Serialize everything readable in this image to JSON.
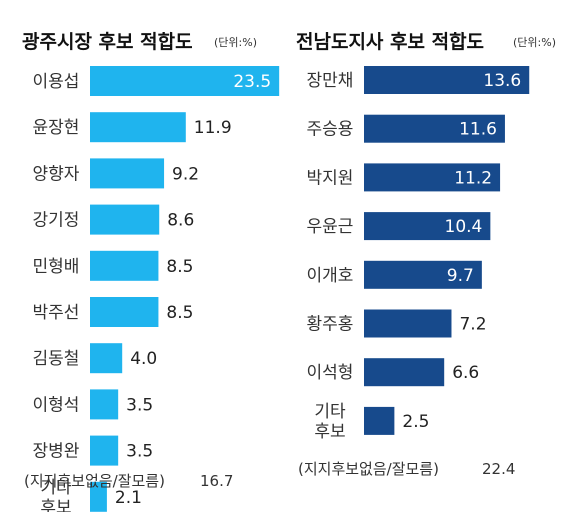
{
  "chart_data": [
    {
      "type": "bar",
      "orientation": "horizontal",
      "title": "광주시장 후보 적합도",
      "unit": "(단위:%)",
      "color": "#1fb4ee",
      "categories": [
        [
          "이용섭"
        ],
        [
          "윤장현"
        ],
        [
          "양향자"
        ],
        [
          "강기정"
        ],
        [
          "민형배"
        ],
        [
          "박주선"
        ],
        [
          "김동철"
        ],
        [
          "이형석"
        ],
        [
          "장병완"
        ],
        [
          "기타",
          "후보"
        ]
      ],
      "values": [
        23.5,
        11.9,
        9.2,
        8.6,
        8.5,
        8.5,
        4.0,
        3.5,
        3.5,
        2.1
      ],
      "value_labels": [
        "23.5",
        "11.9",
        "9.2",
        "8.6",
        "8.5",
        "8.5",
        "4.0",
        "3.5",
        "3.5",
        "2.1"
      ],
      "footnote": {
        "label": "(지지후보없음/잘모름)",
        "value": "16.7"
      }
    },
    {
      "type": "bar",
      "orientation": "horizontal",
      "title": "전남도지사 후보 적합도",
      "unit": "(단위:%)",
      "color": "#174a8c",
      "categories": [
        [
          "장만채"
        ],
        [
          "주승용"
        ],
        [
          "박지원"
        ],
        [
          "우윤근"
        ],
        [
          "이개호"
        ],
        [
          "황주홍"
        ],
        [
          "이석형"
        ],
        [
          "기타",
          "후보"
        ]
      ],
      "values": [
        13.6,
        11.6,
        11.2,
        10.4,
        9.7,
        7.2,
        6.6,
        2.5
      ],
      "value_labels": [
        "13.6",
        "11.6",
        "11.2",
        "10.4",
        "9.7",
        "7.2",
        "6.6",
        "2.5"
      ],
      "footnote": {
        "label": "(지지후보없음/잘모름)",
        "value": "22.4"
      }
    }
  ]
}
